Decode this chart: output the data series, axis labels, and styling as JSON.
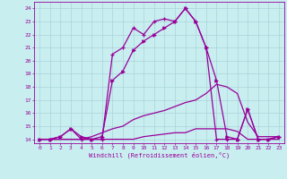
{
  "xlabel": "Windchill (Refroidissement éolien,°C)",
  "background_color": "#c8eef0",
  "grid_color": "#aad4d8",
  "line_color": "#990099",
  "x_hours": [
    0,
    1,
    2,
    3,
    4,
    5,
    6,
    7,
    8,
    9,
    10,
    11,
    12,
    13,
    14,
    15,
    16,
    17,
    18,
    19,
    20,
    21,
    22,
    23
  ],
  "curve1": [
    14,
    14,
    14.2,
    14.8,
    14,
    14,
    14,
    20.5,
    21,
    22.5,
    22,
    23,
    23.2,
    23,
    24,
    23,
    21,
    14,
    14,
    14,
    16.3,
    14,
    14,
    14.2
  ],
  "curve2": [
    14,
    14,
    14.2,
    14.8,
    14.2,
    14,
    14.2,
    18.5,
    19.2,
    20.8,
    21.5,
    22,
    22.5,
    23,
    24,
    23,
    21,
    18.5,
    14.2,
    14,
    16.3,
    14,
    14,
    14.2
  ],
  "curve3": [
    14,
    14,
    14,
    14,
    14,
    14.2,
    14.5,
    14.8,
    15,
    15.5,
    15.8,
    16,
    16.2,
    16.5,
    16.8,
    17,
    17.5,
    18.2,
    18,
    17.5,
    15.3,
    14.2,
    14.2,
    14.2
  ],
  "curve4": [
    14,
    14,
    14,
    14,
    14,
    14,
    14,
    14,
    14,
    14,
    14.2,
    14.3,
    14.4,
    14.5,
    14.5,
    14.8,
    14.8,
    14.8,
    14.8,
    14.6,
    14,
    14,
    14,
    14
  ],
  "ylim": [
    13.7,
    24.5
  ],
  "xlim": [
    -0.5,
    23.5
  ]
}
